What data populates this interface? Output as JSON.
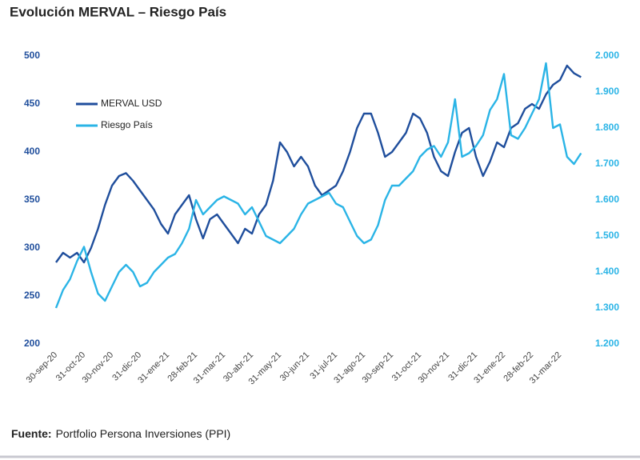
{
  "chart_data": {
    "type": "line",
    "title": "Evolución MERVAL – Riesgo País",
    "source": {
      "label": "Fuente:",
      "text": "Portfolio Persona Inversiones (PPI)"
    },
    "legend": "upper left",
    "categories": [
      "30-sep-20",
      null,
      null,
      null,
      "31-oct-20",
      null,
      null,
      null,
      "30-nov-20",
      null,
      null,
      null,
      "31-dic-20",
      null,
      null,
      null,
      "31-ene-21",
      null,
      null,
      null,
      "28-feb-21",
      null,
      null,
      null,
      "31-mar-21",
      null,
      null,
      null,
      "30-abr-21",
      null,
      null,
      null,
      "31-may-21",
      null,
      null,
      null,
      "30-jun-21",
      null,
      null,
      null,
      "31-jul-21",
      null,
      null,
      null,
      "31-ago-21",
      null,
      null,
      null,
      "30-sep-21",
      null,
      null,
      null,
      "31-oct-21",
      null,
      null,
      null,
      "30-nov-21",
      null,
      null,
      null,
      "31-dic-21",
      null,
      null,
      null,
      "31-ene-22",
      null,
      null,
      null,
      "28-feb-22",
      null,
      null,
      null,
      "31-mar-22",
      null,
      null,
      null
    ],
    "series": [
      {
        "name": "MERVAL USD",
        "color": "#1f4e9c",
        "axis": "y",
        "values": [
          285,
          295,
          290,
          295,
          285,
          300,
          320,
          345,
          365,
          375,
          378,
          370,
          360,
          350,
          340,
          325,
          315,
          335,
          345,
          355,
          330,
          310,
          330,
          335,
          325,
          315,
          305,
          320,
          315,
          335,
          345,
          370,
          410,
          400,
          385,
          395,
          385,
          365,
          355,
          360,
          365,
          380,
          400,
          425,
          440,
          440,
          420,
          395,
          400,
          410,
          420,
          440,
          435,
          420,
          395,
          380,
          375,
          400,
          420,
          425,
          395,
          375,
          390,
          410,
          405,
          425,
          430,
          445,
          450,
          445,
          460,
          470,
          475,
          490,
          482,
          478
        ]
      },
      {
        "name": "Riesgo País",
        "color": "#2ab4e6",
        "axis": "y2",
        "values": [
          1300,
          1350,
          1380,
          1430,
          1470,
          1400,
          1340,
          1320,
          1360,
          1400,
          1420,
          1400,
          1360,
          1370,
          1400,
          1420,
          1440,
          1450,
          1480,
          1520,
          1600,
          1560,
          1580,
          1600,
          1610,
          1600,
          1590,
          1560,
          1580,
          1540,
          1500,
          1490,
          1480,
          1500,
          1520,
          1560,
          1590,
          1600,
          1610,
          1620,
          1590,
          1580,
          1540,
          1500,
          1480,
          1490,
          1530,
          1600,
          1640,
          1640,
          1660,
          1680,
          1720,
          1740,
          1750,
          1720,
          1760,
          1880,
          1720,
          1730,
          1750,
          1780,
          1850,
          1880,
          1950,
          1780,
          1770,
          1800,
          1840,
          1880,
          1980,
          1800,
          1810,
          1720,
          1700,
          1730
        ]
      }
    ],
    "ylim": [
      200,
      500
    ],
    "yticks": [
      200,
      250,
      300,
      350,
      400,
      450,
      500
    ],
    "y2lim": [
      1200,
      2000
    ],
    "y2ticks": [
      {
        "value": 1200,
        "label": "1.200"
      },
      {
        "value": 1300,
        "label": "1.300"
      },
      {
        "value": 1400,
        "label": "1.400"
      },
      {
        "value": 1500,
        "label": "1.500"
      },
      {
        "value": 1600,
        "label": "1.600"
      },
      {
        "value": 1700,
        "label": "1.700"
      },
      {
        "value": 1800,
        "label": "1.800"
      },
      {
        "value": 1900,
        "label": "1.900"
      },
      {
        "value": 2000,
        "label": "2.000"
      }
    ]
  }
}
